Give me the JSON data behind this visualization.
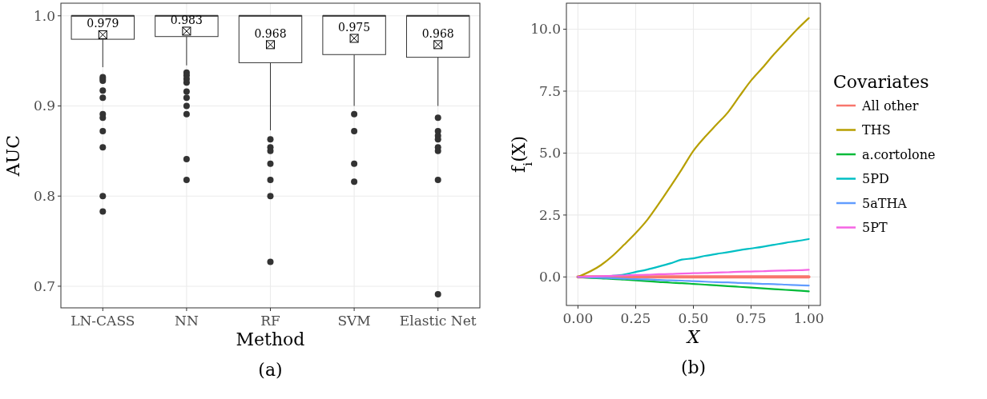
{
  "chart_data": [
    {
      "type": "box",
      "title": "(a)",
      "xlabel": "Method",
      "ylabel": "AUC",
      "categories": [
        "LN-CASS",
        "NN",
        "RF",
        "SVM",
        "Elastic Net"
      ],
      "ylim": [
        0.676,
        1.014
      ],
      "yticks": [
        0.7,
        {
          "value": 0.8,
          "label": "0.8"
        },
        0.9,
        {
          "value": 1.0,
          "label": "1.0"
        }
      ],
      "grid": true,
      "boxes": [
        {
          "low": 0.943,
          "q1": 0.974,
          "median": 1.0,
          "q3": 1.0,
          "high": 1.0,
          "mean": 0.979,
          "outliers": [
            0.932,
            0.93,
            0.928,
            0.917,
            0.909,
            0.891,
            0.887,
            0.872,
            0.854,
            0.8,
            0.783
          ]
        },
        {
          "low": 0.945,
          "q1": 0.977,
          "median": 1.0,
          "q3": 1.0,
          "high": 1.0,
          "mean": 0.983,
          "outliers": [
            0.937,
            0.934,
            0.93,
            0.926,
            0.916,
            0.909,
            0.9,
            0.891,
            0.841,
            0.818
          ]
        },
        {
          "low": 0.873,
          "q1": 0.948,
          "median": 1.0,
          "q3": 1.0,
          "high": 1.0,
          "mean": 0.968,
          "outliers": [
            0.863,
            0.854,
            0.85,
            0.836,
            0.818,
            0.8,
            0.727
          ]
        },
        {
          "low": 0.9,
          "q1": 0.957,
          "median": 1.0,
          "q3": 1.0,
          "high": 1.0,
          "mean": 0.975,
          "outliers": [
            0.891,
            0.872,
            0.836,
            0.816
          ]
        },
        {
          "low": 0.9,
          "q1": 0.954,
          "median": 1.0,
          "q3": 1.0,
          "high": 1.0,
          "mean": 0.968,
          "outliers": [
            0.887,
            0.872,
            0.867,
            0.863,
            0.854,
            0.85,
            0.818,
            0.691
          ]
        }
      ],
      "annotations": [
        "0.979",
        "0.983",
        "0.968",
        "0.975",
        "0.968"
      ]
    },
    {
      "type": "line",
      "title": "(b)",
      "xlabel": "X",
      "ylabel": "f$_{i}$(X)",
      "legend_title": "Covariates",
      "legend": "right",
      "grid": true,
      "xlim": [
        -0.05,
        1.05
      ],
      "ylim": [
        -1.15,
        11.05
      ],
      "xticks": [
        {
          "value": 0,
          "label": "0.00"
        },
        0.25,
        {
          "value": 0.5,
          "label": "0.50"
        },
        0.75,
        {
          "value": 1,
          "label": "1.00"
        }
      ],
      "yticks": [
        {
          "value": 0,
          "label": "0.0"
        },
        2.5,
        {
          "value": 5,
          "label": "5.0"
        },
        7.5,
        {
          "value": 10,
          "label": "10.0"
        }
      ],
      "x": [
        0,
        0.1,
        0.15,
        0.2,
        0.25,
        0.3,
        0.35,
        0.4,
        0.45,
        0.5,
        0.55,
        0.6,
        0.65,
        0.7,
        0.75,
        0.8,
        0.85,
        0.9,
        0.95,
        1.0
      ],
      "series": [
        {
          "name": "All other",
          "color": "#f8766d",
          "values": [
            0,
            0,
            0,
            0,
            0,
            0,
            0,
            0,
            0,
            0,
            0,
            0,
            0,
            0,
            0,
            0,
            0,
            0,
            0,
            0
          ]
        },
        {
          "name": "THS",
          "color": "#b79f00",
          "values": [
            0,
            0.48,
            0.85,
            1.3,
            1.77,
            2.3,
            2.95,
            3.64,
            4.35,
            5.09,
            5.65,
            6.15,
            6.65,
            7.3,
            7.93,
            8.45,
            9.0,
            9.5,
            10.0,
            10.45
          ]
        },
        {
          "name": "a.cortolone",
          "color": "#00ba38",
          "values": [
            0,
            -0.06,
            -0.08,
            -0.11,
            -0.14,
            -0.17,
            -0.2,
            -0.23,
            -0.25,
            -0.28,
            -0.31,
            -0.34,
            -0.37,
            -0.4,
            -0.43,
            -0.46,
            -0.49,
            -0.52,
            -0.55,
            -0.58
          ]
        },
        {
          "name": "5PD",
          "color": "#00bfc4",
          "values": [
            null,
            null,
            0.05,
            0.1,
            0.2,
            0.3,
            0.42,
            0.55,
            0.7,
            0.75,
            0.85,
            0.93,
            1.0,
            1.08,
            1.15,
            1.22,
            1.3,
            1.38,
            1.45,
            1.53
          ]
        },
        {
          "name": "5aTHA",
          "color": "#619cff",
          "values": [
            0,
            -0.03,
            -0.05,
            -0.07,
            -0.09,
            -0.1,
            -0.12,
            -0.14,
            -0.15,
            -0.17,
            -0.19,
            -0.21,
            -0.22,
            -0.24,
            -0.26,
            -0.28,
            -0.29,
            -0.31,
            -0.33,
            -0.35
          ]
        },
        {
          "name": "5PT",
          "color": "#f564e3",
          "values": [
            0,
            0.03,
            0.05,
            0.06,
            0.08,
            0.09,
            0.11,
            0.12,
            0.14,
            0.15,
            0.16,
            0.18,
            0.19,
            0.21,
            0.22,
            0.23,
            0.25,
            0.26,
            0.27,
            0.29
          ]
        }
      ]
    }
  ]
}
